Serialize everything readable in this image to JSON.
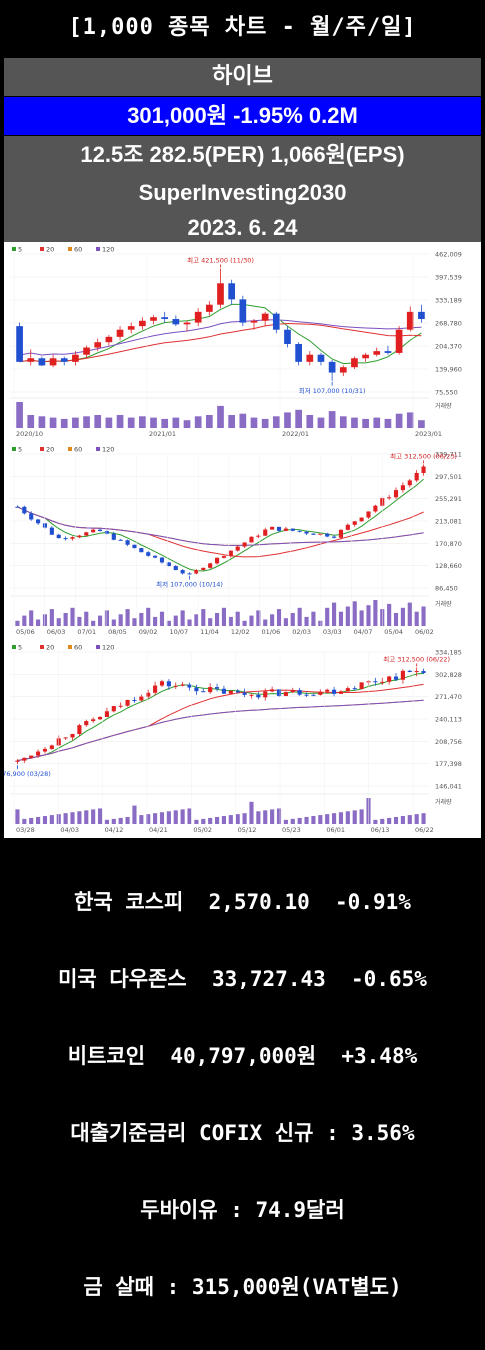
{
  "header": {
    "title": "[1,000 종목 차트 - 월/주/일]",
    "stock_name": "하이브",
    "price_line": "301,000원  -1.95%  0.2M",
    "stats_line": "12.5조  282.5(PER)  1,066원(EPS)",
    "brand": "SuperInvesting2030",
    "date": "2023. 6. 24"
  },
  "legend": [
    "5",
    "20",
    "60",
    "120"
  ],
  "colors": {
    "ma5": "#2e9e2e",
    "ma20": "#e03030",
    "ma60": "#e08a1e",
    "ma120": "#7a4fc0",
    "up": "#e02020",
    "down": "#2050d0",
    "vol": "#8a6cc4"
  },
  "chart_data": [
    {
      "type": "candlestick",
      "period": "monthly",
      "y_ticks": [
        "462,009",
        "397,539",
        "333,189",
        "268,780",
        "204,370",
        "139,960",
        "75,550"
      ],
      "ylim": [
        75550,
        462009
      ],
      "x_ticks": [
        "2020/10",
        "2021/01",
        "2022/01",
        "2023/01"
      ],
      "annotations": {
        "high": "최고 421,500 (11/30)",
        "low": "최저 107,000 (10/31)"
      },
      "volume_label": "거래량",
      "candles": [
        [
          260000,
          270000,
          160000,
          160000
        ],
        [
          160000,
          195000,
          150000,
          170000
        ],
        [
          170000,
          175000,
          148000,
          150000
        ],
        [
          150000,
          180000,
          145000,
          170000
        ],
        [
          170000,
          175000,
          150000,
          160000
        ],
        [
          160000,
          190000,
          150000,
          180000
        ],
        [
          180000,
          205000,
          170000,
          200000
        ],
        [
          200000,
          225000,
          190000,
          215000
        ],
        [
          215000,
          235000,
          205000,
          230000
        ],
        [
          230000,
          260000,
          220000,
          250000
        ],
        [
          250000,
          270000,
          240000,
          260000
        ],
        [
          260000,
          285000,
          250000,
          275000
        ],
        [
          275000,
          290000,
          265000,
          285000
        ],
        [
          285000,
          300000,
          270000,
          280000
        ],
        [
          280000,
          290000,
          260000,
          265000
        ],
        [
          265000,
          275000,
          245000,
          270000
        ],
        [
          270000,
          310000,
          260000,
          300000
        ],
        [
          300000,
          330000,
          290000,
          320000
        ],
        [
          320000,
          421500,
          310000,
          380000
        ],
        [
          380000,
          390000,
          320000,
          335000
        ],
        [
          335000,
          345000,
          260000,
          270000
        ],
        [
          270000,
          280000,
          250000,
          275000
        ],
        [
          275000,
          300000,
          260000,
          295000
        ],
        [
          295000,
          300000,
          240000,
          250000
        ],
        [
          250000,
          260000,
          200000,
          210000
        ],
        [
          210000,
          215000,
          150000,
          160000
        ],
        [
          160000,
          190000,
          150000,
          180000
        ],
        [
          180000,
          185000,
          150000,
          160000
        ],
        [
          160000,
          165000,
          107000,
          130000
        ],
        [
          130000,
          150000,
          120000,
          145000
        ],
        [
          145000,
          175000,
          140000,
          170000
        ],
        [
          170000,
          185000,
          160000,
          180000
        ],
        [
          180000,
          200000,
          175000,
          190000
        ],
        [
          190000,
          205000,
          180000,
          185000
        ],
        [
          185000,
          260000,
          180000,
          250000
        ],
        [
          250000,
          315000,
          245000,
          300000
        ],
        [
          300000,
          320000,
          270000,
          280000
        ]
      ],
      "volumes": [
        1.0,
        0.5,
        0.45,
        0.4,
        0.35,
        0.4,
        0.45,
        0.5,
        0.4,
        0.5,
        0.4,
        0.45,
        0.4,
        0.35,
        0.4,
        0.3,
        0.45,
        0.5,
        0.85,
        0.5,
        0.55,
        0.4,
        0.35,
        0.45,
        0.6,
        0.7,
        0.5,
        0.4,
        0.65,
        0.45,
        0.4,
        0.35,
        0.4,
        0.35,
        0.55,
        0.6,
        0.3
      ]
    },
    {
      "type": "candlestick",
      "period": "weekly",
      "y_ticks": [
        "339,711",
        "297,501",
        "255,291",
        "213,081",
        "170,870",
        "128,660",
        "86,450"
      ],
      "ylim": [
        86450,
        339711
      ],
      "x_ticks": [
        "05/06",
        "06/03",
        "07/01",
        "08/05",
        "09/02",
        "10/07",
        "11/04",
        "12/02",
        "01/06",
        "02/03",
        "03/03",
        "04/07",
        "05/04",
        "06/02"
      ],
      "annotations": {
        "high": "최고 312,500 (06/23)",
        "low": "최저 107,000 (10/14)"
      },
      "candles_count": 60
    },
    {
      "type": "candlestick",
      "period": "daily",
      "y_ticks": [
        "334,185",
        "302,828",
        "271,470",
        "240,113",
        "208,756",
        "177,398",
        "146,041"
      ],
      "ylim": [
        146041,
        334185
      ],
      "x_ticks": [
        "03/28",
        "04/03",
        "04/12",
        "04/21",
        "05/02",
        "05/12",
        "05/23",
        "06/01",
        "06/13",
        "06/22"
      ],
      "annotations": {
        "high": "최고 312,500 (06/22)",
        "low": "최저 176,900 (03/28)"
      },
      "candles_count": 60
    }
  ],
  "markets": [
    "한국 코스피  2,570.10  -0.91%",
    "미국 다우존스  33,727.43  -0.65%",
    "비트코인  40,797,000원  +3.48%",
    "대출기준금리 COFIX 신규 : 3.56%",
    "두바이유 : 74.9달러",
    "금 살때 : 315,000원(VAT별도)"
  ]
}
